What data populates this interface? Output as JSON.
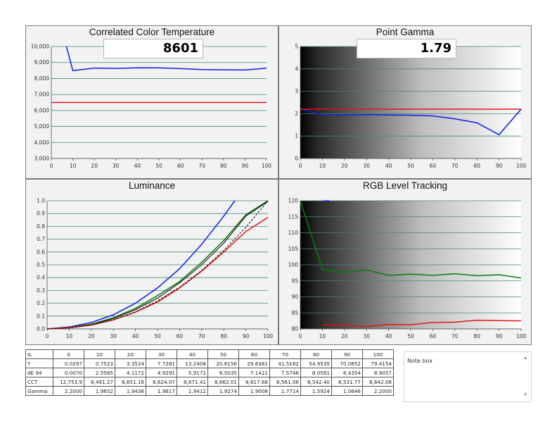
{
  "colors": {
    "blue": "#0a1ee6",
    "red": "#e61414",
    "green": "#0a7a0a",
    "grid": "#3f8a7a",
    "panel_bg": "#f2f2f2"
  },
  "cct_panel": {
    "title": "Correlated Color Temperature",
    "readout": "8601",
    "chart_data": {
      "type": "line",
      "xlim": [
        0,
        100
      ],
      "ylim": [
        3000,
        10000
      ],
      "x_ticks": [
        "0",
        "10",
        "20",
        "30",
        "40",
        "50",
        "60",
        "70",
        "80",
        "90",
        "100"
      ],
      "y_ticks": [
        "3,000",
        "4,000",
        "5,000",
        "6,000",
        "7,000",
        "8,000",
        "9,000",
        "10,000"
      ],
      "series": [
        {
          "color": "blue",
          "x": [
            7,
            10,
            20,
            30,
            40,
            50,
            60,
            70,
            80,
            90,
            100
          ],
          "y": [
            10000,
            8490,
            8651,
            8624,
            8671,
            8662,
            8618,
            8561,
            8542,
            8531,
            8642
          ]
        },
        {
          "color": "red",
          "x": [
            0,
            100
          ],
          "y": [
            6500,
            6500
          ]
        }
      ]
    }
  },
  "gamma_panel": {
    "title": "Point Gamma",
    "readout": "1.79",
    "chart_data": {
      "type": "line",
      "xlim": [
        0,
        100
      ],
      "ylim": [
        0,
        5
      ],
      "x_ticks": [
        "0",
        "10",
        "20",
        "30",
        "40",
        "50",
        "60",
        "70",
        "80",
        "90",
        "100"
      ],
      "y_ticks": [
        "0",
        "1",
        "2",
        "3",
        "4",
        "5"
      ],
      "series": [
        {
          "color": "blue",
          "x": [
            0,
            10,
            20,
            30,
            40,
            50,
            60,
            70,
            80,
            90,
            100
          ],
          "y": [
            2.2,
            1.96,
            1.94,
            1.96,
            1.94,
            1.93,
            1.9,
            1.77,
            1.59,
            1.06,
            2.2
          ]
        },
        {
          "color": "red",
          "x": [
            0,
            100
          ],
          "y": [
            2.2,
            2.2
          ]
        }
      ]
    }
  },
  "lum_panel": {
    "title": "Luminance",
    "chart_data": {
      "type": "line",
      "xlim": [
        0,
        100
      ],
      "ylim": [
        0,
        1
      ],
      "x_ticks": [
        "0",
        "10",
        "20",
        "30",
        "40",
        "50",
        "60",
        "70",
        "80",
        "90",
        "100"
      ],
      "y_ticks": [
        "0.0",
        "0.1",
        "0.2",
        "0.3",
        "0.4",
        "0.5",
        "0.6",
        "0.7",
        "0.8",
        "0.9",
        "1.0"
      ],
      "series": [
        {
          "color": "blue",
          "x": [
            0,
            10,
            20,
            30,
            40,
            50,
            60,
            70,
            80,
            85
          ],
          "y": [
            0,
            0.015,
            0.05,
            0.11,
            0.2,
            0.32,
            0.47,
            0.66,
            0.88,
            1.0
          ]
        },
        {
          "color": "green",
          "x": [
            0,
            10,
            20,
            30,
            40,
            50,
            60,
            70,
            80,
            90,
            100
          ],
          "y": [
            0,
            0.011,
            0.037,
            0.087,
            0.16,
            0.26,
            0.37,
            0.52,
            0.69,
            0.89,
            1.0
          ]
        },
        {
          "color": "black",
          "x": [
            0,
            10,
            20,
            30,
            40,
            50,
            60,
            70,
            80,
            90,
            100
          ],
          "y": [
            0,
            0.01,
            0.033,
            0.08,
            0.15,
            0.24,
            0.36,
            0.5,
            0.67,
            0.88,
            0.995
          ]
        },
        {
          "color": "red",
          "x": [
            0,
            10,
            20,
            30,
            40,
            50,
            60,
            70,
            80,
            90,
            100
          ],
          "y": [
            0,
            0.009,
            0.03,
            0.07,
            0.13,
            0.21,
            0.32,
            0.45,
            0.6,
            0.76,
            0.87
          ]
        },
        {
          "color": "black-dashed",
          "x": [
            0,
            10,
            20,
            30,
            40,
            50,
            60,
            70,
            80,
            90,
            100
          ],
          "y": [
            0,
            0.006,
            0.029,
            0.071,
            0.133,
            0.218,
            0.325,
            0.456,
            0.612,
            0.793,
            1.0
          ]
        }
      ]
    }
  },
  "rgb_panel": {
    "title": "RGB Level Tracking",
    "chart_data": {
      "type": "line",
      "xlim": [
        0,
        100
      ],
      "ylim": [
        80,
        120
      ],
      "x_ticks": [
        "0",
        "10",
        "20",
        "30",
        "40",
        "50",
        "60",
        "70",
        "80",
        "90",
        "100"
      ],
      "y_ticks": [
        "80",
        "85",
        "90",
        "95",
        "100",
        "105",
        "110",
        "115",
        "120"
      ],
      "series": [
        {
          "color": "blue",
          "x": [
            10,
            13
          ],
          "y": [
            119.9,
            120
          ]
        },
        {
          "color": "green",
          "x": [
            0,
            10,
            20,
            30,
            40,
            50,
            60,
            70,
            80,
            90,
            100
          ],
          "y": [
            120,
            98.6,
            97.6,
            98.4,
            96.7,
            97.1,
            96.7,
            97.2,
            96.6,
            96.9,
            95.9
          ]
        },
        {
          "color": "red",
          "x": [
            10,
            20,
            30,
            40,
            50,
            60,
            70,
            80,
            90,
            100
          ],
          "y": [
            81.3,
            81.1,
            80.7,
            81.4,
            81.3,
            82,
            82.1,
            82.7,
            82.6,
            82.5
          ]
        }
      ]
    }
  },
  "table": {
    "header_label": "IL",
    "columns": [
      "0",
      "10",
      "20",
      "30",
      "40",
      "50",
      "60",
      "70",
      "80",
      "90",
      "100"
    ],
    "rows": [
      {
        "label": "Y",
        "values": [
          "0.0297",
          "0.7523",
          "3.3524",
          "7.7281",
          "13.2408",
          "20.6156",
          "29.6361",
          "41.5182",
          "54.9535",
          "70.0852",
          "79.4154"
        ]
      },
      {
        "label": "dE 94",
        "values": [
          "0.0070",
          "2.5565",
          "4.1172",
          "4.9291",
          "5.9172",
          "6.5035",
          "7.1421",
          "7.5746",
          "8.0581",
          "8.4354",
          "8.9057"
        ]
      },
      {
        "label": "CCT",
        "values": [
          "12,753.9",
          "8,491.27",
          "8,651.16",
          "8,624.07",
          "8,671.41",
          "8,662.01",
          "8,617.68",
          "8,561.06",
          "8,542.40",
          "8,531.77",
          "8,642.08"
        ]
      },
      {
        "label": "Gamma",
        "values": [
          "2.2000",
          "1.9652",
          "1.9436",
          "1.9617",
          "1.9412",
          "1.9274",
          "1.9008",
          "1.7714",
          "1.5924",
          "1.0646",
          "2.2000"
        ]
      }
    ]
  },
  "note_box": {
    "label": "Note box"
  }
}
